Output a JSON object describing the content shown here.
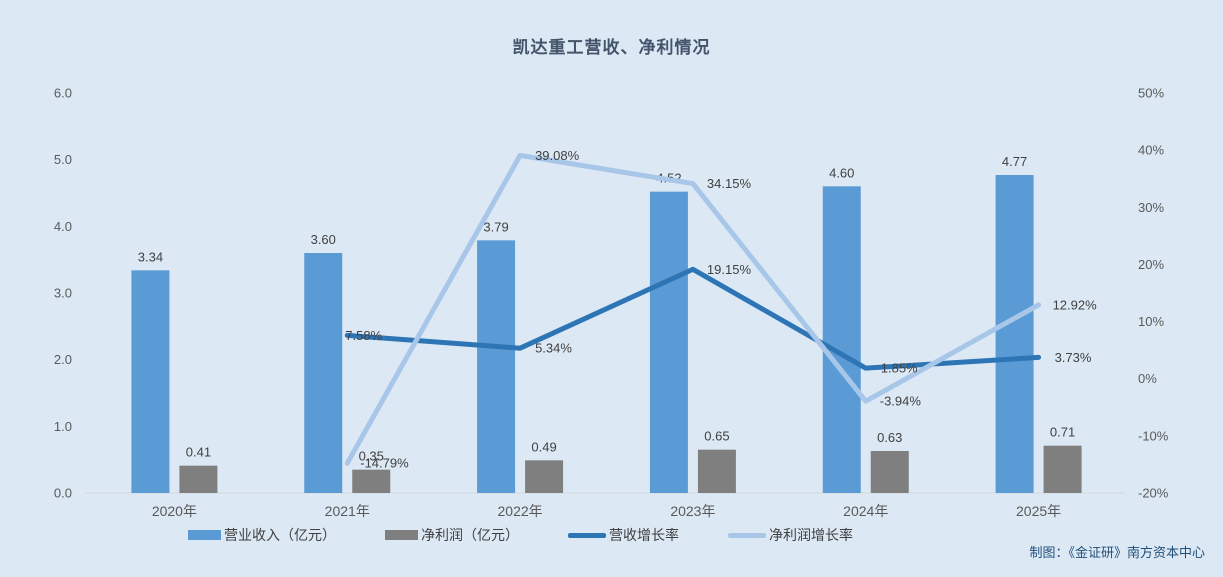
{
  "chart": {
    "title": "凯达重工营收、净利情况",
    "attribution": "制图：《金证研》南方资本中心"
  },
  "colors": {
    "background": "#DCE9F5",
    "revenue_bar": "#5B9BD5",
    "net_profit_bar": "#7F7F7F",
    "revenue_growth_line": "#2E75B6",
    "net_profit_growth_line": "#A8C7E8",
    "axis_line": "#D6DAE0",
    "tick_text": "#595959",
    "data_label_text": "#404040",
    "title_text": "#44546A",
    "attribution_text": "#1F4E79"
  },
  "chart_data": {
    "type": "bar+line combo",
    "title": "凯达重工营收、净利情况",
    "categories": [
      "2020年",
      "2021年",
      "2022年",
      "2023年",
      "2024年",
      "2025年"
    ],
    "series": [
      {
        "name": "营业收入（亿元）",
        "type": "bar",
        "axis": "left",
        "color": "#5B9BD5",
        "values": [
          3.34,
          3.6,
          3.79,
          4.52,
          4.6,
          4.77
        ],
        "labels": [
          "3.34",
          "3.60",
          "3.79",
          "4.52",
          "4.60",
          "4.77"
        ]
      },
      {
        "name": "净利润（亿元）",
        "type": "bar",
        "axis": "left",
        "color": "#7F7F7F",
        "values": [
          0.41,
          0.35,
          0.49,
          0.65,
          0.63,
          0.71
        ],
        "labels": [
          "0.41",
          "0.35",
          "0.49",
          "0.65",
          "0.63",
          "0.71"
        ]
      },
      {
        "name": "营收增长率",
        "type": "line",
        "axis": "right",
        "color": "#2E75B6",
        "values": [
          null,
          7.58,
          5.34,
          19.15,
          1.85,
          3.73
        ],
        "labels": [
          null,
          "7.58%",
          "5.34%",
          "19.15%",
          "1.85%",
          "3.73%"
        ],
        "label_dx": [
          0,
          -2,
          15,
          14,
          15,
          16
        ]
      },
      {
        "name": "净利润增长率",
        "type": "line",
        "axis": "right",
        "color": "#A8C7E8",
        "values": [
          null,
          -14.79,
          39.08,
          34.15,
          -3.94,
          12.92
        ],
        "labels": [
          null,
          "-14.79%",
          "39.08%",
          "34.15%",
          "-3.94%",
          "12.92%"
        ],
        "label_dx": [
          0,
          13,
          15,
          14,
          14,
          14
        ]
      }
    ],
    "left_axis": {
      "min": 0,
      "max": 6,
      "ticks": [
        "6.0",
        "5.0",
        "4.0",
        "3.0",
        "2.0",
        "1.0",
        "0.0"
      ],
      "tick_values": [
        6,
        5,
        4,
        3,
        2,
        1,
        0
      ]
    },
    "right_axis": {
      "min": -20,
      "max": 50,
      "ticks": [
        "50%",
        "40%",
        "30%",
        "20%",
        "10%",
        "0%",
        "-10%",
        "-20%"
      ],
      "tick_values": [
        50,
        40,
        30,
        20,
        10,
        0,
        -10,
        -20
      ]
    },
    "legend_position": "bottom",
    "grid": false
  }
}
